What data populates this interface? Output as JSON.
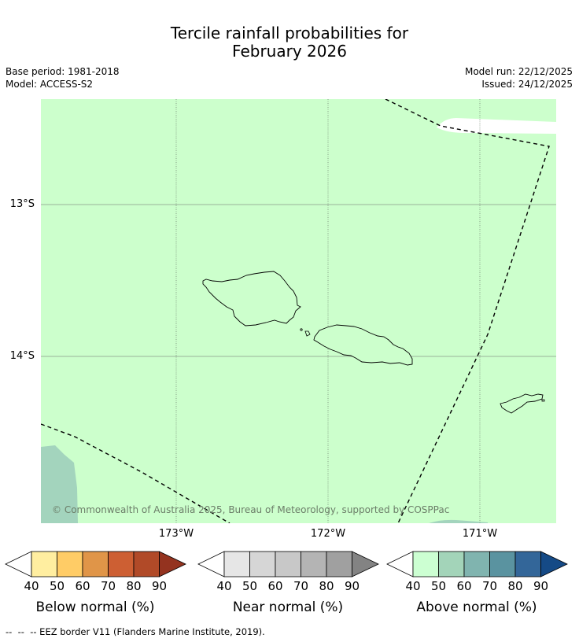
{
  "title": {
    "line1": "Tercile rainfall probabilities for",
    "line2": "February 2026"
  },
  "meta": {
    "base_period": "Base period: 1981-2018",
    "model": "Model: ACCESS-S2",
    "model_run": "Model run: 22/12/2025",
    "issued": "Issued: 24/12/2025"
  },
  "map": {
    "latitude_labels": [
      "13°S",
      "14°S"
    ],
    "longitude_labels": [
      "173°W",
      "172°W",
      "171°W"
    ],
    "copyright": "© Commonwealth of Australia 2025, Bureau of Meteorology, supported by COSPPac",
    "colors": {
      "above_40_50": "#ccffcc",
      "above_50_60": "#a3d4bd",
      "land_outline": "#000000",
      "gridline": "#666666"
    }
  },
  "colorbars": [
    {
      "title": "Below normal (%)",
      "ticks": [
        "40",
        "50",
        "60",
        "70",
        "80",
        "90"
      ],
      "colors": [
        "#ffeea0",
        "#ffcc66",
        "#e09548",
        "#cd5f33",
        "#b14a28",
        "#94331f"
      ]
    },
    {
      "title": "Near normal (%)",
      "ticks": [
        "40",
        "50",
        "60",
        "70",
        "80",
        "90"
      ],
      "colors": [
        "#e6e6e6",
        "#d6d6d6",
        "#c8c8c8",
        "#b4b4b4",
        "#a0a0a0",
        "#838383"
      ]
    },
    {
      "title": "Above normal (%)",
      "ticks": [
        "40",
        "50",
        "60",
        "70",
        "80",
        "90"
      ],
      "colors": [
        "#ccffd2",
        "#a3d4b9",
        "#80b4af",
        "#5a93a0",
        "#336699",
        "#154a86"
      ]
    }
  ],
  "footnote": "--  --  -- EEZ border V11 (Flanders Marine Institute, 2019)."
}
